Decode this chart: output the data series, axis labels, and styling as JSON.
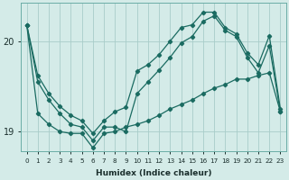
{
  "xlabel": "Humidex (Indice chaleur)",
  "background_color": "#d4ebe8",
  "grid_color": "#a8cdc9",
  "line_color": "#1a6b61",
  "xlim": [
    -0.5,
    23.5
  ],
  "ylim": [
    18.78,
    20.42
  ],
  "yticks": [
    19,
    20
  ],
  "xticks": [
    0,
    1,
    2,
    3,
    4,
    5,
    6,
    7,
    8,
    9,
    10,
    11,
    12,
    13,
    14,
    15,
    16,
    17,
    18,
    19,
    20,
    21,
    22,
    23
  ],
  "series1_x": [
    0,
    1,
    2,
    3,
    4,
    5,
    6,
    7,
    8,
    9,
    10,
    11,
    12,
    13,
    14,
    15,
    16,
    17,
    18,
    19,
    20,
    21,
    22,
    23
  ],
  "series1_y": [
    20.18,
    19.62,
    19.42,
    19.28,
    19.18,
    19.12,
    18.98,
    19.12,
    19.22,
    19.27,
    19.67,
    19.74,
    19.85,
    20.0,
    20.15,
    20.18,
    20.32,
    20.32,
    20.15,
    20.08,
    19.87,
    19.74,
    20.06,
    19.25
  ],
  "series2_x": [
    0,
    1,
    2,
    3,
    4,
    5,
    6,
    7,
    8,
    9,
    10,
    11,
    12,
    13,
    14,
    15,
    16,
    17,
    18,
    19,
    20,
    21,
    22,
    23
  ],
  "series2_y": [
    20.18,
    19.55,
    19.35,
    19.2,
    19.08,
    19.05,
    18.9,
    19.05,
    19.05,
    19.0,
    19.42,
    19.55,
    19.68,
    19.82,
    19.98,
    20.05,
    20.22,
    20.28,
    20.12,
    20.05,
    19.82,
    19.65,
    19.95,
    19.22
  ],
  "series3_x": [
    0,
    1,
    2,
    3,
    4,
    5,
    6,
    7,
    8,
    9,
    10,
    11,
    12,
    13,
    14,
    15,
    16,
    17,
    18,
    19,
    20,
    21,
    22,
    23
  ],
  "series3_y": [
    20.18,
    19.2,
    19.08,
    19.0,
    18.98,
    18.98,
    18.82,
    18.98,
    19.0,
    19.05,
    19.08,
    19.12,
    19.18,
    19.25,
    19.3,
    19.35,
    19.42,
    19.48,
    19.52,
    19.58,
    19.58,
    19.62,
    19.65,
    19.22
  ]
}
